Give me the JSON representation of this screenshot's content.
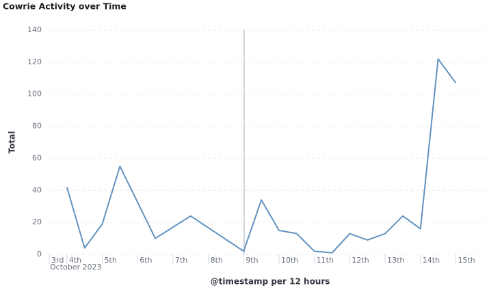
{
  "chart_data": {
    "type": "line",
    "title": "Cowrie Activity over Time",
    "x_label": "@timestamp per 12 hours",
    "y_label": "Total",
    "x_sublabel": "October 2023",
    "x": [
      4,
      4.5,
      5,
      5.5,
      6.5,
      7.5,
      9,
      9.5,
      10,
      10.5,
      11,
      11.5,
      12,
      12.5,
      13,
      13.5,
      14,
      14.5,
      15
    ],
    "series": [
      {
        "name": "Total",
        "color": "#6092c0",
        "values": [
          42,
          4,
          19,
          55,
          10,
          24,
          2,
          34,
          15,
          13,
          2,
          1,
          13,
          9,
          13,
          24,
          16,
          122,
          107
        ]
      }
    ],
    "xlim": [
      3.5,
      15.9
    ],
    "xticks": [
      {
        "value": 3.5,
        "label": "3rd"
      },
      {
        "value": 4,
        "label": "4th"
      },
      {
        "value": 5,
        "label": "5th"
      },
      {
        "value": 6,
        "label": "6th"
      },
      {
        "value": 7,
        "label": "7th"
      },
      {
        "value": 8,
        "label": "8th"
      },
      {
        "value": 9,
        "label": "9th"
      },
      {
        "value": 10,
        "label": "10th"
      },
      {
        "value": 11,
        "label": "11th"
      },
      {
        "value": 12,
        "label": "12th"
      },
      {
        "value": 13,
        "label": "13th"
      },
      {
        "value": 14,
        "label": "14th"
      },
      {
        "value": 15,
        "label": "15th"
      }
    ],
    "ylim": [
      0,
      140
    ],
    "yticks": [
      0,
      20,
      40,
      60,
      80,
      100,
      120,
      140
    ],
    "grid": true
  }
}
